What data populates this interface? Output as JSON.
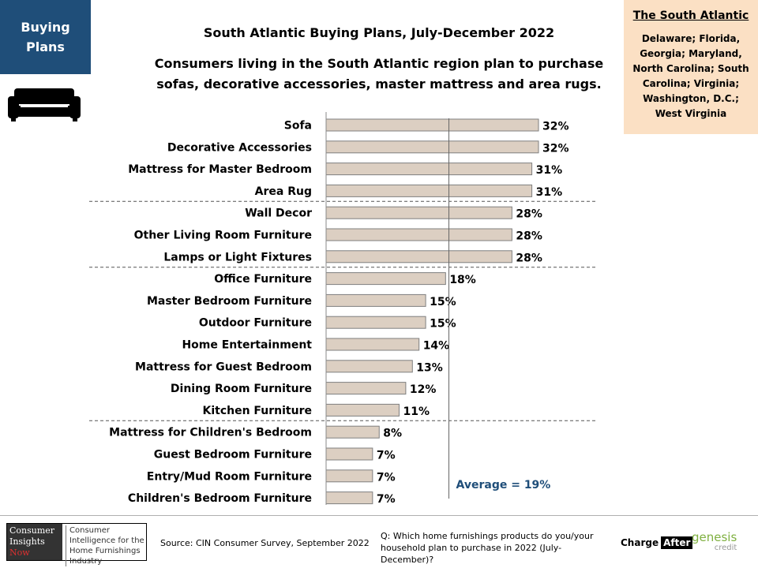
{
  "tag": {
    "line1": "Buying",
    "line2": "Plans"
  },
  "icons": {
    "sofa": "sofa-icon"
  },
  "title": "South Atlantic Buying Plans, July-December 2022",
  "subtitle_line1": "Consumers living in the South Atlantic region plan to purchase",
  "subtitle_line2": "sofas, decorative accessories, master mattress and area rugs.",
  "region": {
    "title": "The South Atlantic",
    "list": [
      "Delaware; Florida,",
      "Georgia; Maryland,",
      "North Carolina; South",
      "Carolina; Virginia;",
      "Washington, D.C.;",
      "West Virginia"
    ]
  },
  "colors": {
    "bar_fill": "#dccfc2",
    "bar_stroke": "#7f7f7f",
    "average_text": "#1f4e79",
    "tag_bg": "#1f4e79",
    "region_bg": "#fbe0c4"
  },
  "chart_data": {
    "type": "bar",
    "orientation": "horizontal",
    "categories": [
      "Sofa",
      "Decorative Accessories",
      "Mattress for Master Bedroom",
      "Area Rug",
      "Wall Decor",
      "Other Living Room Furniture",
      "Lamps or Light Fixtures",
      "Office Furniture",
      "Master Bedroom Furniture",
      "Outdoor Furniture",
      "Home Entertainment",
      "Mattress for Guest Bedroom",
      "Dining Room Furniture",
      "Kitchen Furniture",
      "Mattress for Children's Bedroom",
      "Guest Bedroom Furniture",
      "Entry/Mud Room Furniture",
      "Children's Bedroom Furniture"
    ],
    "values": [
      32,
      32,
      31,
      31,
      28,
      28,
      28,
      18,
      15,
      15,
      14,
      13,
      12,
      11,
      8,
      7,
      7,
      7
    ],
    "labels": [
      "32%",
      "32%",
      "31%",
      "31%",
      "28%",
      "28%",
      "28%",
      "18%",
      "15%",
      "15%",
      "14%",
      "13%",
      "12%",
      "11%",
      "8%",
      "7%",
      "7%",
      "7%"
    ],
    "group_separators_after": [
      3,
      6,
      13
    ],
    "average": {
      "value": 19,
      "label": "Average = 19%"
    },
    "xlim": [
      0,
      32
    ]
  },
  "footer": {
    "logo_left": [
      "Consumer",
      "Insights",
      "Now"
    ],
    "logo_right": "Consumer Intelligence for the Home Furnishings Industry",
    "source": "Source: CIN Consumer Survey, September 2022",
    "question": "Q: Which home furnishings products do you/your household plan to purchase in 2022 (July-December)?",
    "charge": "Charge",
    "after": "After",
    "genesis": "genesis",
    "credit": "credit"
  }
}
